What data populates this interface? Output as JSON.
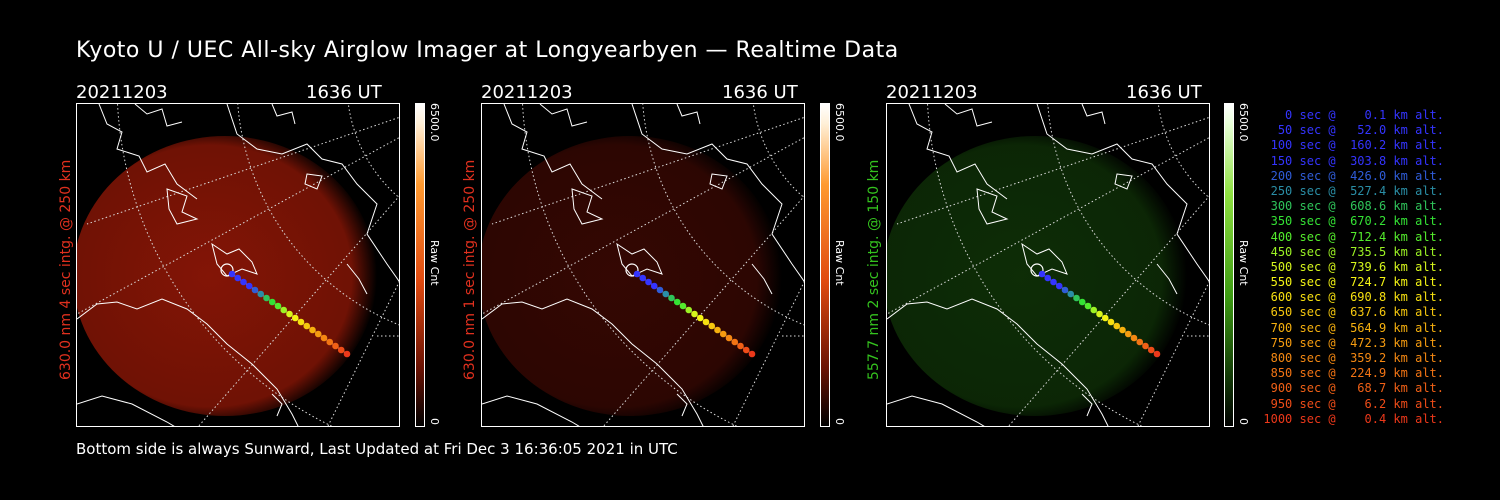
{
  "title": "Kyoto U / UEC All-sky Airglow Imager at Longyearbyen — Realtime Data",
  "footer": "Bottom side is always Sunward, Last Updated at Fri Dec  3 16:36:05 2021 in UTC",
  "panels": [
    {
      "date": "20211203",
      "time": "1636 UT",
      "side_label": "630.0 nm 4 sec intg. @ 250 km",
      "label_color": "#e0301e",
      "scale_max": "6500.0",
      "scale_min": "0",
      "scale_unit": "Raw Cnt",
      "colorbar": "red",
      "glow_color": "#8a1606",
      "glow_opacity": 0.95
    },
    {
      "date": "20211203",
      "time": "1636 UT",
      "side_label": "630.0 nm 1 sec intg. @ 250 km",
      "label_color": "#e0301e",
      "scale_max": "6500.0",
      "scale_min": "0",
      "scale_unit": "Raw Cnt",
      "colorbar": "red",
      "glow_color": "#3a0803",
      "glow_opacity": 0.9
    },
    {
      "date": "20211203",
      "time": "1636 UT",
      "side_label": "557.7 nm 2 sec intg. @ 150 km",
      "label_color": "#34c21e",
      "scale_max": "6500.0",
      "scale_min": "0",
      "scale_unit": "Raw Cnt",
      "colorbar": "green",
      "glow_color": "#0f3207",
      "glow_opacity": 0.9
    }
  ],
  "legend": [
    {
      "text": "   0 sec @    0.1 km alt.",
      "color": "#3434ff"
    },
    {
      "text": "  50 sec @   52.0 km alt.",
      "color": "#3434ff"
    },
    {
      "text": " 100 sec @  160.2 km alt.",
      "color": "#3434ff"
    },
    {
      "text": " 150 sec @  303.8 km alt.",
      "color": "#3434ff"
    },
    {
      "text": " 200 sec @  426.0 km alt.",
      "color": "#2f5cd8"
    },
    {
      "text": " 250 sec @  527.4 km alt.",
      "color": "#2a8ea6"
    },
    {
      "text": " 300 sec @  608.6 km alt.",
      "color": "#2fc45a"
    },
    {
      "text": " 350 sec @  670.2 km alt.",
      "color": "#34e234"
    },
    {
      "text": " 400 sec @  712.4 km alt.",
      "color": "#54ec2c"
    },
    {
      "text": " 450 sec @  735.5 km alt.",
      "color": "#9cf224"
    },
    {
      "text": " 500 sec @  739.6 km alt.",
      "color": "#d6f61c"
    },
    {
      "text": " 550 sec @  724.7 km alt.",
      "color": "#f4f414"
    },
    {
      "text": " 600 sec @  690.8 km alt.",
      "color": "#f6e010"
    },
    {
      "text": " 650 sec @  637.6 km alt.",
      "color": "#f6c80e"
    },
    {
      "text": " 700 sec @  564.9 km alt.",
      "color": "#f6b00e"
    },
    {
      "text": " 750 sec @  472.3 km alt.",
      "color": "#f69c10"
    },
    {
      "text": " 800 sec @  359.2 km alt.",
      "color": "#f48812"
    },
    {
      "text": " 850 sec @  224.9 km alt.",
      "color": "#f27414"
    },
    {
      "text": " 900 sec @   68.7 km alt.",
      "color": "#f06016"
    },
    {
      "text": " 950 sec @    6.2 km alt.",
      "color": "#ee4c18"
    },
    {
      "text": "1000 sec @    0.4 km alt.",
      "color": "#ec381a"
    }
  ]
}
